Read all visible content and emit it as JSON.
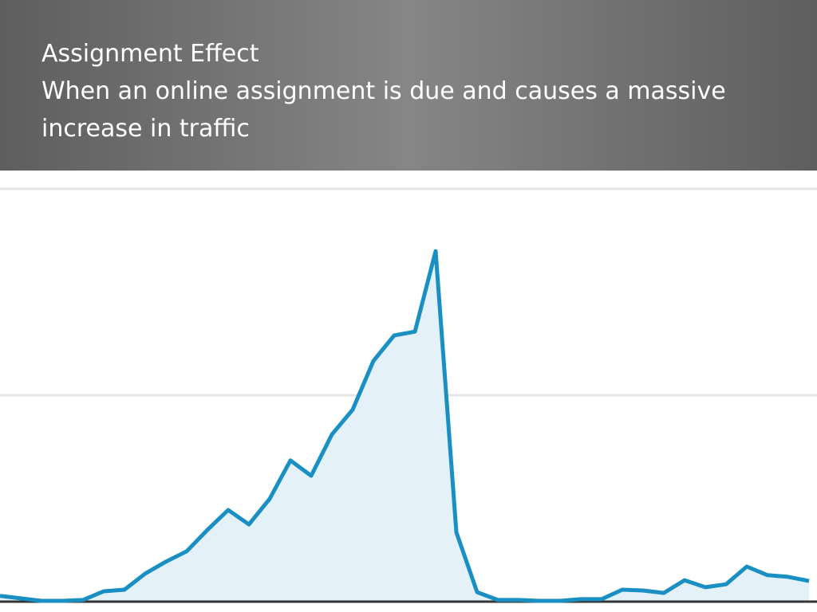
{
  "chart_data": {
    "type": "area",
    "title": "Assignment Effect",
    "subtitle": "When an online assignment is due and causes a massive increase in traffic",
    "categories": [
      null,
      null,
      null,
      null,
      null,
      null,
      null,
      null,
      null,
      null,
      null,
      null,
      null,
      null,
      null,
      null,
      null,
      null,
      null,
      null,
      null,
      null,
      null,
      null,
      null,
      null,
      null,
      null,
      null,
      null,
      null,
      null,
      null,
      null,
      null,
      null,
      null,
      null,
      null,
      null
    ],
    "values": [
      1.4,
      0.8,
      0.2,
      0.2,
      0.4,
      2.5,
      2.9,
      6.8,
      9.7,
      12.2,
      17.4,
      22.2,
      18.7,
      24.9,
      34.2,
      30.5,
      40.5,
      46.5,
      58.3,
      64.5,
      65.4,
      84.9,
      16.8,
      2.3,
      0.4,
      0.4,
      0.2,
      0.2,
      0.6,
      0.6,
      2.9,
      2.7,
      2.1,
      5.2,
      3.5,
      4.2,
      8.5,
      6.4,
      6.0,
      5.0
    ],
    "color": "#1a8fc4",
    "ylim": [
      0,
      100
    ],
    "yticks": [
      50,
      100
    ],
    "grid": true
  }
}
